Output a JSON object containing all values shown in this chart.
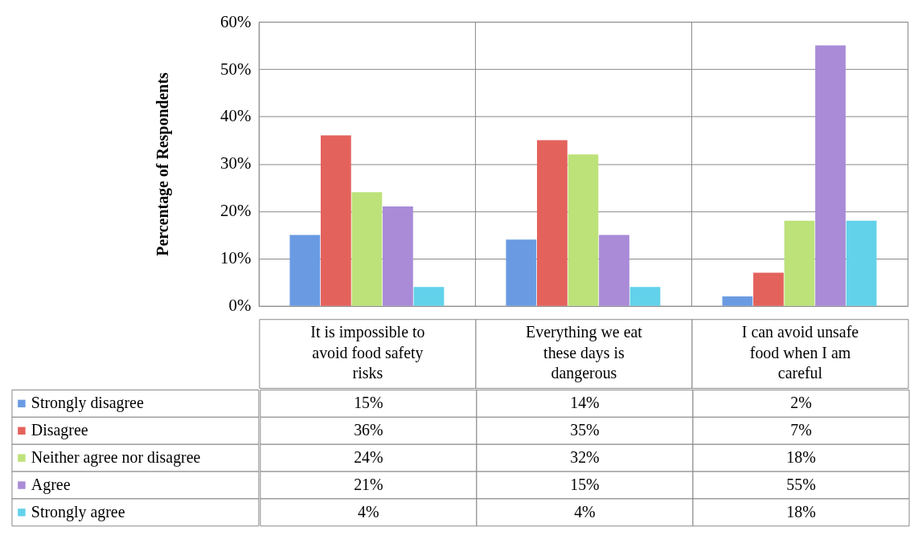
{
  "chart_data": {
    "type": "bar",
    "ylabel": "Percentage of Respondents",
    "categories": [
      "It is impossible to avoid food safety risks",
      "Everything we eat these days is dangerous",
      "I can avoid unsafe food when I am careful"
    ],
    "series": [
      {
        "name": "Strongly disagree",
        "color": "#6a9be2",
        "values": [
          15,
          14,
          2
        ],
        "value_labels": [
          "15%",
          "14%",
          "2%"
        ]
      },
      {
        "name": "Disagree",
        "color": "#e4625c",
        "values": [
          36,
          35,
          7
        ],
        "value_labels": [
          "36%",
          "35%",
          "7%"
        ]
      },
      {
        "name": "Neither agree nor disagree",
        "color": "#bde27a",
        "values": [
          24,
          32,
          18
        ],
        "value_labels": [
          "24%",
          "32%",
          "18%"
        ]
      },
      {
        "name": " Agree",
        "color": "#a98bd8",
        "values": [
          21,
          15,
          55
        ],
        "value_labels": [
          "21%",
          "15%",
          "55%"
        ]
      },
      {
        "name": "Strongly agree",
        "color": "#62d2ea",
        "values": [
          4,
          4,
          18
        ],
        "value_labels": [
          "4%",
          "4%",
          "18%"
        ]
      }
    ],
    "ylim": [
      0,
      60
    ],
    "yticks": [
      {
        "value": 0,
        "label": "0%"
      },
      {
        "value": 10,
        "label": "10%"
      },
      {
        "value": 20,
        "label": "20%"
      },
      {
        "value": 30,
        "label": "30%"
      },
      {
        "value": 40,
        "label": "40%"
      },
      {
        "value": 50,
        "label": "50%"
      },
      {
        "value": 60,
        "label": "60%"
      }
    ],
    "grid": true,
    "legend": "bottom"
  }
}
